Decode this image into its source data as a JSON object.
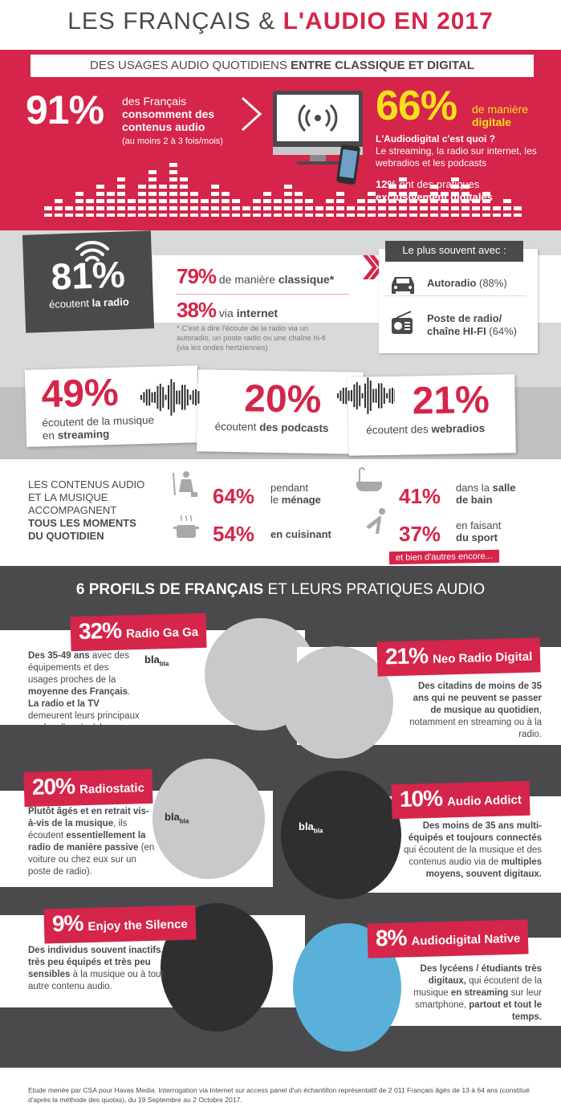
{
  "title": {
    "part1": "LES FRANÇAIS & ",
    "part2": "L'AUDIO EN 2017"
  },
  "banner": {
    "part1": "DES USAGES AUDIO QUOTIDIENS ",
    "part2": "ENTRE CLASSIQUE ET DIGITAL"
  },
  "consume": {
    "percent": "91%",
    "line1": "des Français",
    "line2": "consomment des",
    "line3": "contenus audio",
    "line4": "(au moins 2 à 3 fois/mois)"
  },
  "digital": {
    "percent": "66%",
    "line1": "de manière",
    "line2": "digitale",
    "question": "L'Audiodigital c'est quoi ?",
    "answer": "Le streaming, la radio sur internet, les webradios et les podcasts",
    "exclusive_pct": "12%",
    "exclusive1": " ont des pratiques",
    "exclusive2": "exclusivement digitales"
  },
  "radio": {
    "percent": "81%",
    "label1": "écoutent ",
    "label2": "la radio",
    "classic_pct": "79%",
    "classic1": " de manière ",
    "classic2": "classique*",
    "internet_pct": "38%",
    "internet1": " via ",
    "internet2": "internet",
    "note": "* C'est à dire l'écoute de la radio via un autoradio, un poste radio ou une chaîne hi-fi (via les ondes hertziennes)",
    "with_title": "Le plus souvent avec :",
    "with": [
      {
        "name": "Autoradio",
        "value": " (88%)",
        "icon": "car-icon"
      },
      {
        "name1": "Poste de radio/",
        "name2": "chaîne HI-FI",
        "value": " (64%)",
        "icon": "radio-icon"
      }
    ]
  },
  "listening": [
    {
      "percent": "49%",
      "l1": "écoutent de la musique",
      "l2": "en ",
      "l3": "streaming"
    },
    {
      "percent": "20%",
      "l1": "écoutent ",
      "l2": "des podcasts"
    },
    {
      "percent": "21%",
      "l1": "écoutent des ",
      "l2": "webradios"
    }
  ],
  "moments": {
    "intro1": "LES CONTENUS AUDIO",
    "intro2": "ET LA MUSIQUE",
    "intro3": "ACCOMPAGNENT",
    "intro4": "TOUS LES MOMENTS",
    "intro5": "DU QUOTIDIEN",
    "items": [
      {
        "percent": "64%",
        "l1": "pendant",
        "l2": "le ",
        "l3": "ménage",
        "icon": "cleaning-icon"
      },
      {
        "percent": "54%",
        "l1": "",
        "l2": "",
        "l3": "en cuisinant",
        "icon": "cooking-pot-icon"
      },
      {
        "percent": "41%",
        "l1": "dans la ",
        "l1b": "salle",
        "l2": "",
        "l3": "de bain",
        "icon": "bathtub-icon"
      },
      {
        "percent": "37%",
        "l1": "en faisant",
        "l2": "",
        "l3": "du sport",
        "icon": "exercise-icon"
      }
    ],
    "more": "et bien d'autres encore..."
  },
  "profiles_title": {
    "part1": "6 PROFILS DE FRANÇAIS",
    "part2": " ET LEURS PRATIQUES AUDIO"
  },
  "profiles": [
    {
      "percent": "32%",
      "name": "Radio Ga Ga",
      "segs": [
        [
          "Des 35-49 ans",
          1
        ],
        [
          " avec des équipements et des usages proches de la ",
          0
        ],
        [
          "moyenne des Français",
          1
        ],
        [
          ". ",
          0
        ],
        [
          "La radio et la TV",
          1
        ],
        [
          " demeurent leurs principaux modes d'accès à la musique au quotidien.",
          0
        ]
      ]
    },
    {
      "percent": "21%",
      "name": "Neo Radio Digital",
      "segs": [
        [
          "Des citadins de moins de 35 ans qui ne peuvent se passer de musique au quotidien",
          1
        ],
        [
          ", notamment en streaming ou à la  radio.",
          0
        ]
      ]
    },
    {
      "percent": "20%",
      "name": "Radiostatic",
      "segs": [
        [
          "Plutôt âgés et en retrait vis-à-vis de la musique",
          1
        ],
        [
          ", ils écoutent ",
          0
        ],
        [
          "essentiellement la radio de manière passive",
          1
        ],
        [
          " (en voiture ou chez eux sur un poste de radio).",
          0
        ]
      ]
    },
    {
      "percent": "10%",
      "name": "Audio Addict",
      "segs": [
        [
          "Des moins de 35 ans multi-équipés et toujours connectés",
          1
        ],
        [
          " qui écoutent de la musique et des contenus audio via de ",
          0
        ],
        [
          "multiples moyens, souvent digitaux.",
          1
        ]
      ]
    },
    {
      "percent": "9%",
      "name": "Enjoy the Silence",
      "segs": [
        [
          "Des individus souvent inactifs, très peu équipés et très peu sensibles",
          1
        ],
        [
          " à la musique ou à tout autre contenu audio.",
          0
        ]
      ]
    },
    {
      "percent": "8%",
      "name": "Audiodigital Native",
      "segs": [
        [
          "Des lycéens / étudiants très digitaux,",
          1
        ],
        [
          " qui écoutent de la musique ",
          0
        ],
        [
          "en streaming",
          1
        ],
        [
          " sur leur smartphone, ",
          0
        ],
        [
          "partout et tout le temps.",
          1
        ]
      ]
    }
  ],
  "bla": {
    "big": "bla",
    "small": "bla"
  },
  "footer": "Etude menée par CSA pour Havas Media. Interrogation via Internet sur access panel d'un échantillon représentatif de 2 011 Français âgés de 13 à 64 ans (constitué d'après la méthode des quotas), du 19 Septembre au 2 Octobre 2017.",
  "colors": {
    "red": "#d5254a",
    "dark": "#4a4a4d",
    "yellow": "#f7e01b",
    "grey": "#d9d9db"
  }
}
